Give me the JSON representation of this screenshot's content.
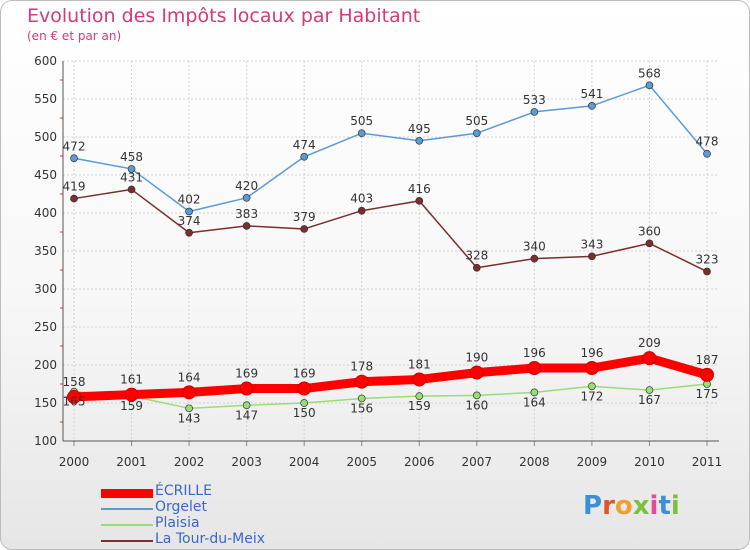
{
  "title": "Evolution des Impôts locaux par Habitant",
  "subtitle": "(en € et par an)",
  "brand": "Proxiti",
  "chart_data": {
    "type": "line",
    "x": [
      "2000",
      "2001",
      "2002",
      "2003",
      "2004",
      "2005",
      "2006",
      "2007",
      "2008",
      "2009",
      "2010",
      "2011"
    ],
    "ylim": [
      100,
      600
    ],
    "yticks": [
      100,
      150,
      200,
      250,
      300,
      350,
      400,
      450,
      500,
      550,
      600
    ],
    "grid": true,
    "legend_position": "bottom-left",
    "series": [
      {
        "name": "ÉCRILLE",
        "color": "#ff0000",
        "values": [
          158,
          161,
          164,
          169,
          169,
          178,
          181,
          190,
          196,
          196,
          209,
          187
        ]
      },
      {
        "name": "Orgelet",
        "color": "#5b9bd5",
        "values": [
          472,
          458,
          402,
          420,
          474,
          505,
          495,
          505,
          533,
          541,
          568,
          478
        ]
      },
      {
        "name": "Plaisia",
        "color": "#99dd77",
        "values": [
          165,
          159,
          143,
          147,
          150,
          156,
          159,
          160,
          164,
          172,
          167,
          175
        ]
      },
      {
        "name": "La Tour-du-Meix",
        "color": "#7a2e2e",
        "values": [
          419,
          431,
          374,
          383,
          379,
          403,
          416,
          328,
          340,
          343,
          360,
          323
        ]
      }
    ]
  }
}
